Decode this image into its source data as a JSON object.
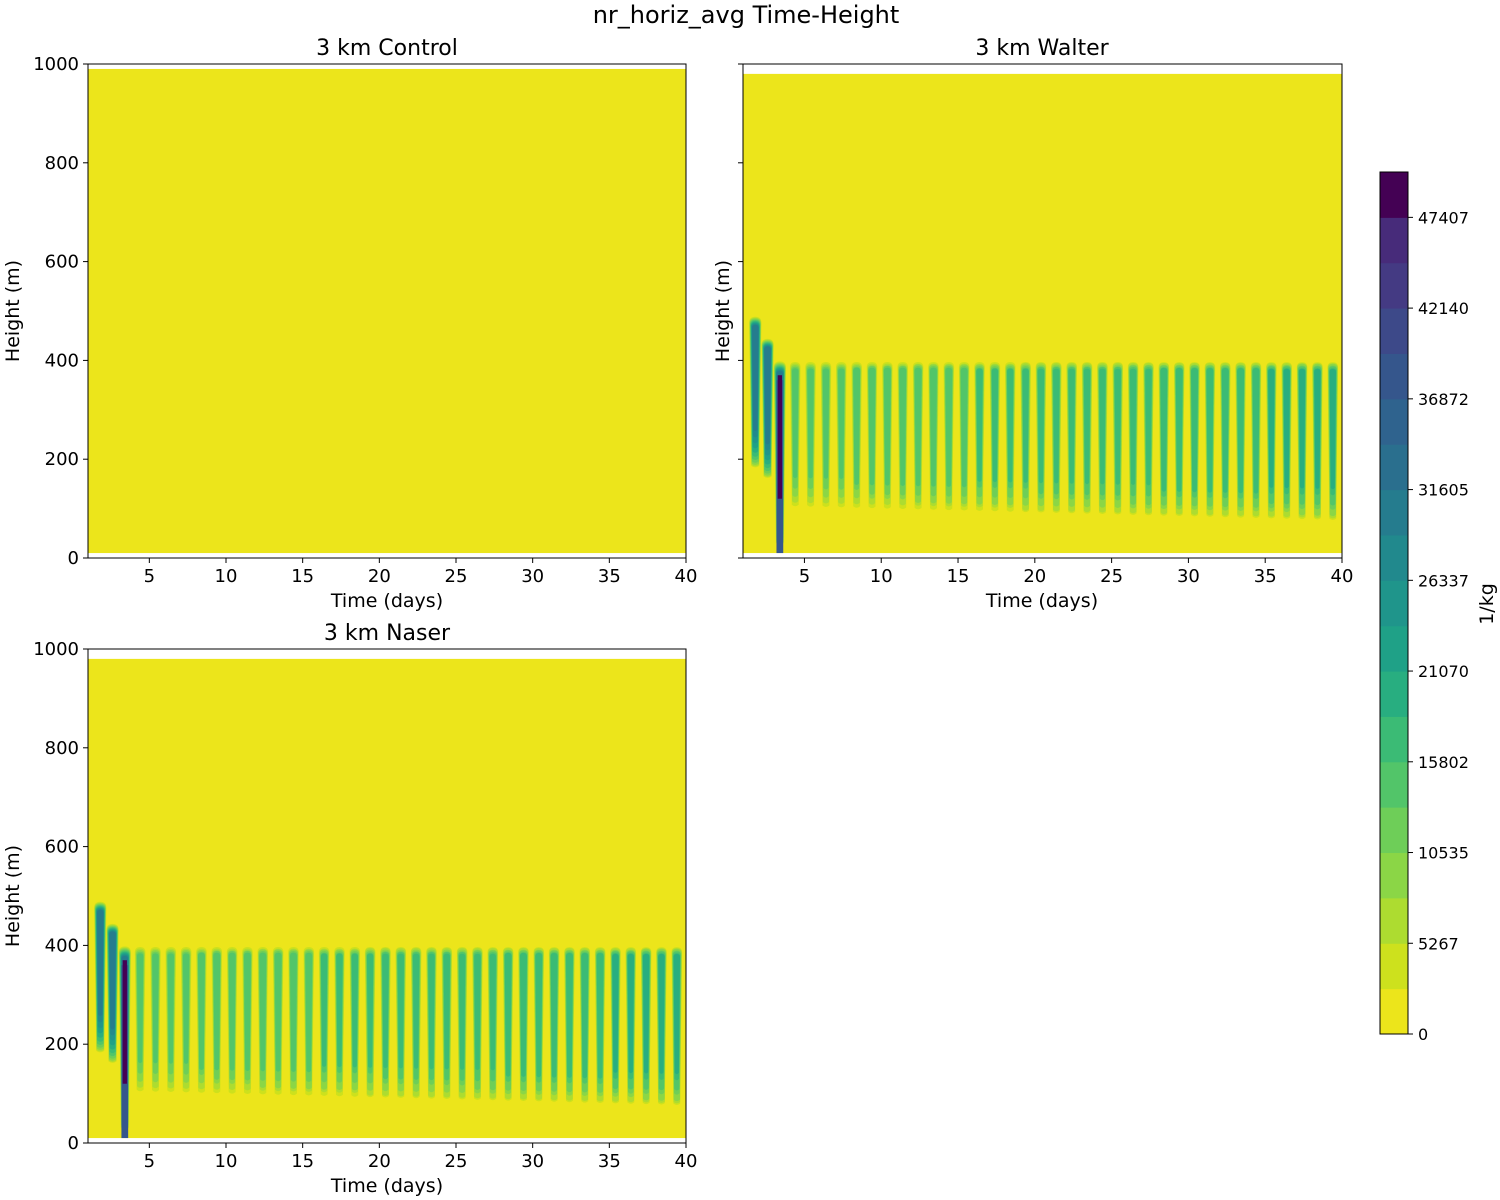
{
  "figure": {
    "title": "nr_horiz_avg Time-Height"
  },
  "chart_data": [
    {
      "type": "heatmap",
      "title": "3 km Control",
      "xlabel": "Time (days)",
      "ylabel": "Height (m)",
      "xlim": [
        1,
        40
      ],
      "ylim": [
        0,
        1000
      ],
      "xticks": [
        5,
        10,
        15,
        20,
        25,
        30,
        35,
        40
      ],
      "yticks": [
        0,
        200,
        400,
        600,
        800,
        1000
      ],
      "show_ytick_labels": true,
      "data_height_range": [
        10,
        990
      ],
      "pattern": "uniform",
      "description_value": 0
    },
    {
      "type": "heatmap",
      "title": "3 km Walter",
      "xlabel": "Time (days)",
      "ylabel": "Height (m)",
      "xlim": [
        1,
        40
      ],
      "ylim": [
        0,
        1000
      ],
      "xticks": [
        5,
        10,
        15,
        20,
        25,
        30,
        35,
        40
      ],
      "yticks": [
        0,
        200,
        400,
        600,
        800,
        1000
      ],
      "show_ytick_labels": false,
      "data_height_range": [
        10,
        980
      ],
      "pattern": "diurnal",
      "spinup_days": [
        {
          "day": 1.8,
          "top": 490,
          "bottom": 170
        },
        {
          "day": 2.6,
          "top": 445,
          "bottom": 150
        },
        {
          "day": 3.4,
          "top": 400,
          "bottom": 10
        }
      ],
      "diurnal_top": 400,
      "diurnal_start_day": 4.4,
      "diurnal_period_days": 1.0,
      "diurnal_bottom_start": 90,
      "diurnal_bottom_end": 60
    },
    {
      "type": "heatmap",
      "title": "3 km Naser",
      "xlabel": "Time (days)",
      "ylabel": "Height (m)",
      "xlim": [
        1,
        40
      ],
      "ylim": [
        0,
        1000
      ],
      "xticks": [
        5,
        10,
        15,
        20,
        25,
        30,
        35,
        40
      ],
      "yticks": [
        0,
        200,
        400,
        600,
        800,
        1000
      ],
      "show_ytick_labels": true,
      "data_height_range": [
        10,
        980
      ],
      "pattern": "diurnal",
      "spinup_days": [
        {
          "day": 1.8,
          "top": 490,
          "bottom": 170
        },
        {
          "day": 2.6,
          "top": 445,
          "bottom": 150
        },
        {
          "day": 3.4,
          "top": 400,
          "bottom": 10
        }
      ],
      "diurnal_top": 400,
      "diurnal_start_day": 4.4,
      "diurnal_period_days": 1.0,
      "diurnal_bottom_start": 90,
      "diurnal_bottom_end": 60
    }
  ],
  "colorbar": {
    "label": "1/kg",
    "ticks": [
      "0",
      "5267",
      "10535",
      "15802",
      "21070",
      "26337",
      "31605",
      "36872",
      "42140",
      "47407"
    ],
    "levels": 19,
    "max": 50040,
    "colors": [
      "#ece51b",
      "#cde11d",
      "#addc30",
      "#8bd646",
      "#6ece58",
      "#52c569",
      "#3bbb75",
      "#28ae80",
      "#1fa187",
      "#1f958b",
      "#21898d",
      "#257c8e",
      "#2a6f8e",
      "#2f638e",
      "#35568c",
      "#3d4989",
      "#443a83",
      "#472b7a",
      "#440154"
    ]
  }
}
